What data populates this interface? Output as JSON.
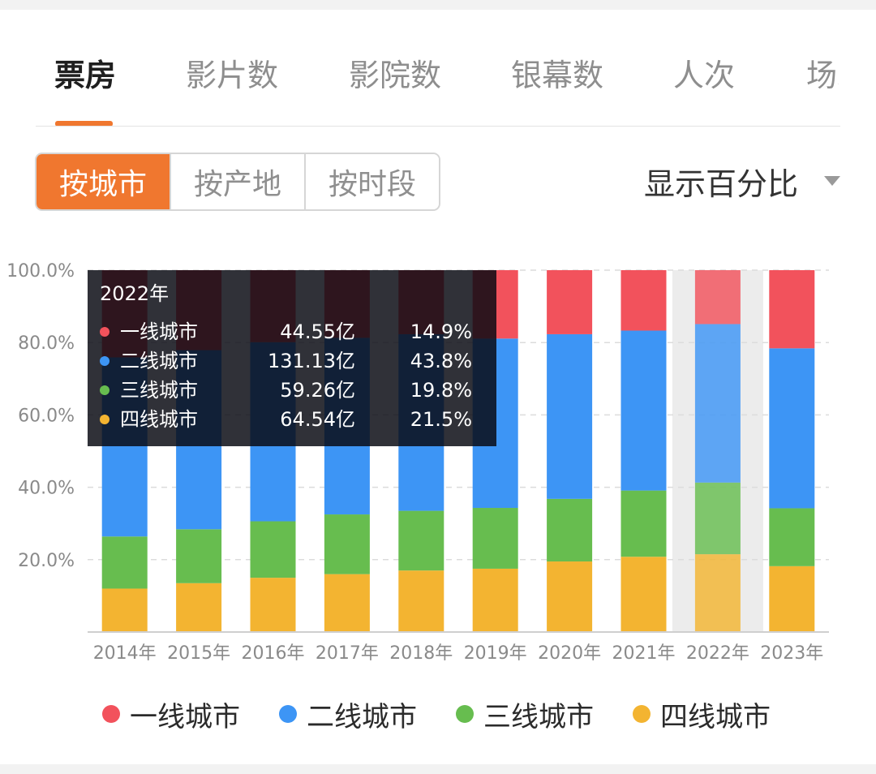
{
  "tabs": [
    "票房",
    "影片数",
    "影院数",
    "银幕数",
    "人次",
    "场次"
  ],
  "segments": [
    "按城市",
    "按产地",
    "按时段"
  ],
  "dropdown": {
    "label": "显示百分比"
  },
  "colors": {
    "accent": "#f0772f",
    "tier1": "#f2525c",
    "tier2": "#3d95f5",
    "tier3": "#67bd4f",
    "tier4": "#f3b431"
  },
  "chart_data": {
    "type": "bar",
    "stacked": true,
    "percent": true,
    "categories": [
      "2014年",
      "2015年",
      "2016年",
      "2017年",
      "2018年",
      "2019年",
      "2020年",
      "2021年",
      "2022年",
      "2023年"
    ],
    "y_ticks": [
      "20.0%",
      "40.0%",
      "60.0%",
      "80.0%",
      "100.0%"
    ],
    "ylim": [
      0,
      100
    ],
    "highlighted_category": "2022年",
    "series": [
      {
        "name": "四线城市",
        "color": "#f3b431",
        "values": [
          12.0,
          13.5,
          15.0,
          16.0,
          17.0,
          17.5,
          19.5,
          20.8,
          21.5,
          18.2
        ]
      },
      {
        "name": "三线城市",
        "color": "#67bd4f",
        "values": [
          14.4,
          14.9,
          15.6,
          16.5,
          16.5,
          16.8,
          17.3,
          18.3,
          19.8,
          16.0
        ]
      },
      {
        "name": "二线城市",
        "color": "#3d95f5",
        "values": [
          49.5,
          49.5,
          49.5,
          48.8,
          48.8,
          46.8,
          45.5,
          44.2,
          43.8,
          44.2
        ]
      },
      {
        "name": "一线城市",
        "color": "#f2525c",
        "values": [
          24.1,
          22.1,
          19.9,
          18.7,
          17.7,
          18.9,
          17.7,
          16.7,
          14.9,
          21.6
        ]
      }
    ],
    "legend": [
      "一线城市",
      "二线城市",
      "三线城市",
      "四线城市"
    ],
    "legend_position": "bottom",
    "grid": true
  },
  "tooltip": {
    "title": "2022年",
    "rows": [
      {
        "name": "一线城市",
        "value": "44.55亿",
        "pct": "14.9%",
        "color": "#f2525c"
      },
      {
        "name": "二线城市",
        "value": "131.13亿",
        "pct": "43.8%",
        "color": "#3d95f5"
      },
      {
        "name": "三线城市",
        "value": "59.26亿",
        "pct": "19.8%",
        "color": "#67bd4f"
      },
      {
        "name": "四线城市",
        "value": "64.54亿",
        "pct": "21.5%",
        "color": "#f3b431"
      }
    ]
  }
}
